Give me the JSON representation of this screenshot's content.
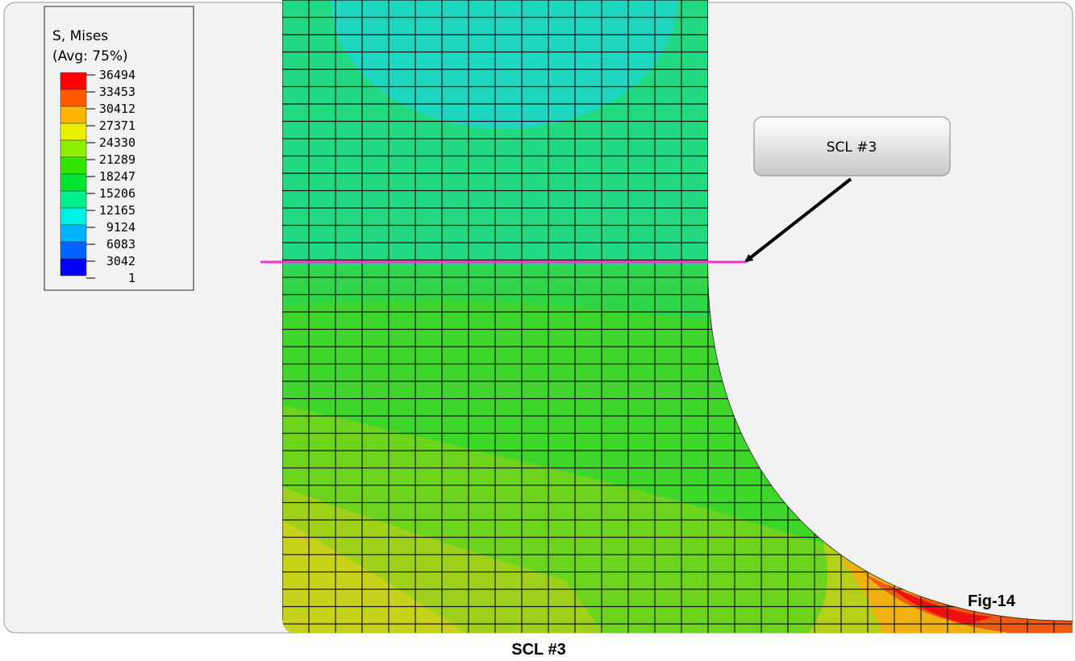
{
  "legend": {
    "title": "S, Mises",
    "subtitle": "(Avg: 75%)",
    "levels": [
      "36494",
      "33453",
      "30412",
      "27371",
      "24330",
      "21289",
      "18247",
      "15206",
      "12165",
      "9124",
      "6083",
      "3042",
      "1"
    ]
  },
  "callout": "SCL #3",
  "figure_label": "Fig-14",
  "caption": "SCL #3"
}
